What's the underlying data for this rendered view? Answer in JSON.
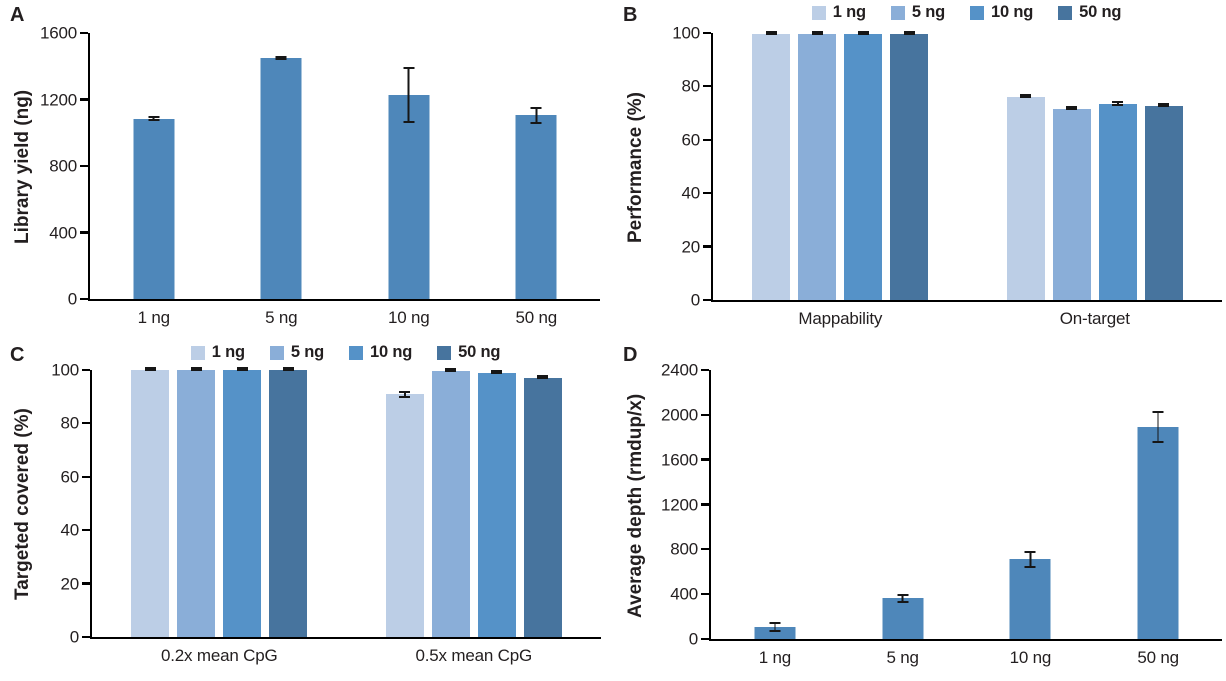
{
  "figure_colors": {
    "single_bar": "#4e87ba",
    "series_palette": [
      "#bccee6",
      "#8aaed8",
      "#5592c8",
      "#47749e"
    ],
    "axis": "#000000",
    "error_bar": "#161616",
    "text": "#231f20",
    "background": "#ffffff"
  },
  "chart_data": [
    {
      "type": "bar",
      "panel_label": "A",
      "ylabel": "Library yield (ng)",
      "xlabel": "",
      "ylim": [
        0,
        1600
      ],
      "yticks": [
        0,
        400,
        800,
        1200,
        1600
      ],
      "grid": false,
      "legend": false,
      "legend_position": "none",
      "categories": [
        "1 ng",
        "5 ng",
        "10 ng",
        "50 ng"
      ],
      "series": [
        {
          "name": "Library yield",
          "color": "#4e87ba",
          "values": [
            1085,
            1448,
            1228,
            1105
          ],
          "errors": [
            14,
            8,
            170,
            52
          ]
        }
      ]
    },
    {
      "type": "bar",
      "panel_label": "B",
      "ylabel": "Performance (%)",
      "xlabel": "",
      "ylim": [
        0,
        100
      ],
      "yticks": [
        0,
        20,
        40,
        60,
        80,
        100
      ],
      "grid": false,
      "legend": true,
      "legend_position": "top",
      "categories": [
        "Mappability",
        "On-target"
      ],
      "series": [
        {
          "name": "1 ng",
          "color": "#bccee6",
          "values": [
            99.7,
            76.0
          ],
          "errors": [
            0.3,
            0.5
          ]
        },
        {
          "name": "5 ng",
          "color": "#8aaed8",
          "values": [
            99.7,
            71.6
          ],
          "errors": [
            0.3,
            0.4
          ]
        },
        {
          "name": "10 ng",
          "color": "#5592c8",
          "values": [
            99.7,
            73.5
          ],
          "errors": [
            0.3,
            0.9
          ]
        },
        {
          "name": "50 ng",
          "color": "#47749e",
          "values": [
            99.7,
            72.6
          ],
          "errors": [
            0.3,
            0.3
          ]
        }
      ]
    },
    {
      "type": "bar",
      "panel_label": "C",
      "ylabel": "Targeted covered (%)",
      "xlabel": "",
      "ylim": [
        0,
        100
      ],
      "yticks": [
        0,
        20,
        40,
        60,
        80,
        100
      ],
      "grid": false,
      "legend": true,
      "legend_position": "top",
      "categories": [
        "0.2x mean CpG",
        "0.5x mean CpG"
      ],
      "series": [
        {
          "name": "1 ng",
          "color": "#bccee6",
          "values": [
            99.9,
            91.0
          ],
          "errors": [
            0.2,
            1.3
          ]
        },
        {
          "name": "5 ng",
          "color": "#8aaed8",
          "values": [
            100,
            99.5
          ],
          "errors": [
            0.2,
            0.3
          ]
        },
        {
          "name": "10 ng",
          "color": "#5592c8",
          "values": [
            100,
            99.0
          ],
          "errors": [
            0.2,
            0.4
          ]
        },
        {
          "name": "50 ng",
          "color": "#47749e",
          "values": [
            99.9,
            96.9
          ],
          "errors": [
            0.3,
            0.3
          ]
        }
      ]
    },
    {
      "type": "bar",
      "panel_label": "D",
      "ylabel": "Average depth (rmdup/x)",
      "xlabel": "",
      "ylim": [
        0,
        2400
      ],
      "yticks": [
        0,
        400,
        800,
        1200,
        1600,
        2000,
        2400
      ],
      "grid": false,
      "legend": false,
      "legend_position": "none",
      "categories": [
        "1 ng",
        "5 ng",
        "10 ng",
        "50 ng"
      ],
      "series": [
        {
          "name": "Average depth",
          "color": "#4e87ba",
          "values": [
            110,
            365,
            710,
            1890
          ],
          "errors": [
            45,
            40,
            72,
            145
          ]
        }
      ]
    }
  ]
}
